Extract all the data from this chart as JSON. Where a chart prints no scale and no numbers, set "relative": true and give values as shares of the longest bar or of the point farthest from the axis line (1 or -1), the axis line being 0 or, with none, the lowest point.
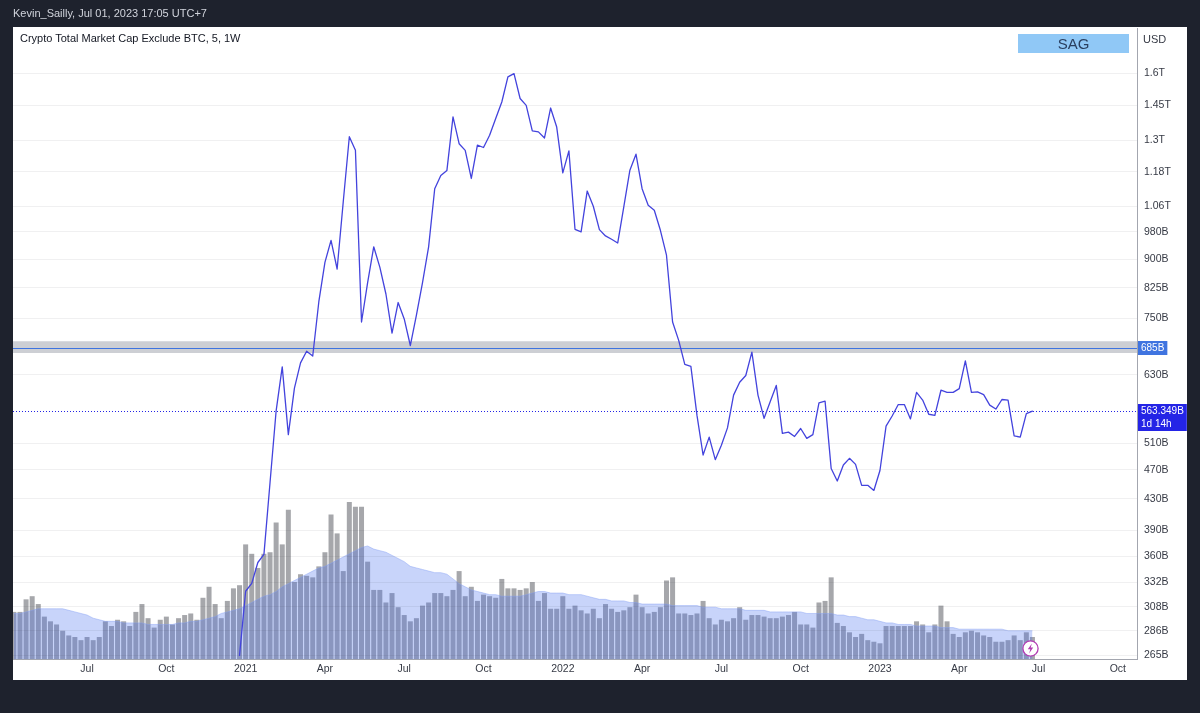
{
  "chart_data": [
    {
      "type": "line",
      "title": "Crypto Total Market Cap Exclude BTC, 5, 1W",
      "subtitle": "Kevin_Sailly, Jul 01, 2023 17:05 UTC+7",
      "ylabel": "USD",
      "x": [
        "2020-12-28",
        "2021-01-04",
        "2021-01-11",
        "2021-01-18",
        "2021-01-25",
        "2021-02-01",
        "2021-02-08",
        "2021-02-15",
        "2021-02-22",
        "2021-03-01",
        "2021-03-08",
        "2021-03-15",
        "2021-03-22",
        "2021-03-29",
        "2021-04-05",
        "2021-04-12",
        "2021-04-19",
        "2021-04-26",
        "2021-05-03",
        "2021-05-10",
        "2021-05-17",
        "2021-05-24",
        "2021-05-31",
        "2021-06-07",
        "2021-06-14",
        "2021-06-21",
        "2021-06-28",
        "2021-07-05",
        "2021-07-12",
        "2021-07-19",
        "2021-07-26",
        "2021-08-02",
        "2021-08-09",
        "2021-08-16",
        "2021-08-23",
        "2021-08-30",
        "2021-09-06",
        "2021-09-13",
        "2021-09-20",
        "2021-09-27",
        "2021-10-04",
        "2021-10-11",
        "2021-10-18",
        "2021-10-25",
        "2021-11-01",
        "2021-11-08",
        "2021-11-15",
        "2021-11-22",
        "2021-11-29",
        "2021-12-06",
        "2021-12-13",
        "2021-12-20",
        "2021-12-27",
        "2022-01-03",
        "2022-01-10",
        "2022-01-17",
        "2022-01-24",
        "2022-01-31",
        "2022-02-07",
        "2022-02-14",
        "2022-02-21",
        "2022-02-28",
        "2022-03-07",
        "2022-03-14",
        "2022-03-21",
        "2022-03-28",
        "2022-04-04",
        "2022-04-11",
        "2022-04-18",
        "2022-04-25",
        "2022-05-02",
        "2022-05-09",
        "2022-05-16",
        "2022-05-23",
        "2022-05-30",
        "2022-06-06",
        "2022-06-13",
        "2022-06-20",
        "2022-06-27",
        "2022-07-04",
        "2022-07-11",
        "2022-07-18",
        "2022-07-25",
        "2022-08-01",
        "2022-08-08",
        "2022-08-15",
        "2022-08-22",
        "2022-08-29",
        "2022-09-05",
        "2022-09-12",
        "2022-09-19",
        "2022-09-26",
        "2022-10-03",
        "2022-10-10",
        "2022-10-17",
        "2022-10-24",
        "2022-10-31",
        "2022-11-07",
        "2022-11-14",
        "2022-11-21",
        "2022-11-28",
        "2022-12-05",
        "2022-12-12",
        "2022-12-19",
        "2022-12-26",
        "2023-01-02",
        "2023-01-09",
        "2023-01-16",
        "2023-01-23",
        "2023-01-30",
        "2023-02-06",
        "2023-02-13",
        "2023-02-20",
        "2023-02-27",
        "2023-03-06",
        "2023-03-13",
        "2023-03-20",
        "2023-03-27",
        "2023-04-03",
        "2023-04-10",
        "2023-04-17",
        "2023-04-24",
        "2023-05-01",
        "2023-05-08",
        "2023-05-15",
        "2023-05-22",
        "2023-05-29",
        "2023-06-05",
        "2023-06-12",
        "2023-06-19",
        "2023-06-26"
      ],
      "values": [
        265000000000,
        323000000000,
        331000000000,
        353000000000,
        362000000000,
        452000000000,
        564000000000,
        646000000000,
        524000000000,
        605000000000,
        654000000000,
        678000000000,
        668000000000,
        790000000000,
        892000000000,
        955000000000,
        874000000000,
        1075000000000,
        1315000000000,
        1261000000000,
        742000000000,
        838000000000,
        936000000000,
        879000000000,
        809000000000,
        717000000000,
        788000000000,
        749000000000,
        690000000000,
        758000000000,
        838000000000,
        936000000000,
        1120000000000,
        1167000000000,
        1185000000000,
        1398000000000,
        1287000000000,
        1261000000000,
        1156000000000,
        1281000000000,
        1272000000000,
        1321000000000,
        1391000000000,
        1464000000000,
        1582000000000,
        1598000000000,
        1480000000000,
        1449000000000,
        1339000000000,
        1335000000000,
        1310000000000,
        1437000000000,
        1355000000000,
        1176000000000,
        1259000000000,
        988000000000,
        980000000000,
        1112000000000,
        1061000000000,
        987000000000,
        968000000000,
        958000000000,
        947000000000,
        1059000000000,
        1186000000000,
        1246000000000,
        1120000000000,
        1064000000000,
        1048000000000,
        985000000000,
        912000000000,
        742000000000,
        701000000000,
        651000000000,
        647000000000,
        556000000000,
        492000000000,
        520000000000,
        485000000000,
        507000000000,
        535000000000,
        592000000000,
        616000000000,
        629000000000,
        676000000000,
        592000000000,
        551000000000,
        580000000000,
        610000000000,
        526000000000,
        528000000000,
        521000000000,
        534000000000,
        518000000000,
        524000000000,
        578000000000,
        581000000000,
        472000000000,
        454000000000,
        477000000000,
        487000000000,
        478000000000,
        448000000000,
        448000000000,
        441000000000,
        469000000000,
        538000000000,
        555000000000,
        575000000000,
        575000000000,
        550000000000,
        597000000000,
        583000000000,
        558000000000,
        556000000000,
        601000000000,
        597000000000,
        597000000000,
        604000000000,
        658000000000,
        597000000000,
        598000000000,
        593000000000,
        574000000000,
        567000000000,
        584000000000,
        583000000000,
        522000000000,
        520000000000,
        559000000000,
        563349000000
      ],
      "color": "#4343dd",
      "xlim": [
        "2020-04-12",
        "2023-10-24"
      ],
      "xticks": [
        {
          "value": "2020-07-06",
          "label": "Jul"
        },
        {
          "value": "2020-10-05",
          "label": "Oct"
        },
        {
          "value": "2021-01-04",
          "label": "2021"
        },
        {
          "value": "2021-04-05",
          "label": "Apr"
        },
        {
          "value": "2021-07-05",
          "label": "Jul"
        },
        {
          "value": "2021-10-04",
          "label": "Oct"
        },
        {
          "value": "2022-01-03",
          "label": "2022"
        },
        {
          "value": "2022-04-04",
          "label": "Apr"
        },
        {
          "value": "2022-07-04",
          "label": "Jul"
        },
        {
          "value": "2022-10-03",
          "label": "Oct"
        },
        {
          "value": "2023-01-02",
          "label": "2023"
        },
        {
          "value": "2023-04-03",
          "label": "Apr"
        },
        {
          "value": "2023-07-03",
          "label": "Jul"
        },
        {
          "value": "2023-10-02",
          "label": "Oct"
        }
      ],
      "ylim": [
        262000000000,
        1840000000000
      ],
      "yticks": [
        {
          "value": 1600000000000,
          "label": "1.6T"
        },
        {
          "value": 1450000000000,
          "label": "1.45T"
        },
        {
          "value": 1300000000000,
          "label": "1.3T"
        },
        {
          "value": 1180000000000,
          "label": "1.18T"
        },
        {
          "value": 1060000000000,
          "label": "1.06T"
        },
        {
          "value": 980000000000,
          "label": "980B"
        },
        {
          "value": 900000000000,
          "label": "900B"
        },
        {
          "value": 825000000000,
          "label": "825B"
        },
        {
          "value": 750000000000,
          "label": "750B"
        },
        {
          "value": 630000000000,
          "label": "630B"
        },
        {
          "value": 510000000000,
          "label": "510B"
        },
        {
          "value": 470000000000,
          "label": "470B"
        },
        {
          "value": 430000000000,
          "label": "430B"
        },
        {
          "value": 390000000000,
          "label": "390B"
        },
        {
          "value": 360000000000,
          "label": "360B"
        },
        {
          "value": 332000000000,
          "label": "332B"
        },
        {
          "value": 308000000000,
          "label": "308B"
        },
        {
          "value": 286000000000,
          "label": "286B"
        },
        {
          "value": 265000000000,
          "label": "265B"
        }
      ],
      "log": true,
      "grid": "y",
      "ref_lines": [
        {
          "axis": "y",
          "value": 685000000000,
          "label": "685B",
          "color": "#3f74e0"
        },
        {
          "axis": "y",
          "value": 563349000000,
          "label": "563.349B",
          "color": "#2424e6",
          "line_style": "dotted"
        }
      ],
      "bands": [
        {
          "axis": "y",
          "from": 674000000000,
          "to": 699000000000,
          "color": "#cdcfd4"
        }
      ],
      "annotations": [
        "SAG",
        "1d 14h"
      ]
    },
    {
      "type": "bar",
      "relative": true,
      "tick_labels": false,
      "x": [
        "2020-04-13",
        "2020-04-20",
        "2020-04-27",
        "2020-05-04",
        "2020-05-11",
        "2020-05-18",
        "2020-05-25",
        "2020-06-01",
        "2020-06-08",
        "2020-06-15",
        "2020-06-22",
        "2020-06-29",
        "2020-07-06",
        "2020-07-13",
        "2020-07-20",
        "2020-07-27",
        "2020-08-03",
        "2020-08-10",
        "2020-08-17",
        "2020-08-24",
        "2020-08-31",
        "2020-09-07",
        "2020-09-14",
        "2020-09-21",
        "2020-09-28",
        "2020-10-05",
        "2020-10-12",
        "2020-10-19",
        "2020-10-26",
        "2020-11-02",
        "2020-11-09",
        "2020-11-16",
        "2020-11-23",
        "2020-11-30",
        "2020-12-07",
        "2020-12-14",
        "2020-12-21",
        "2020-12-28",
        "2021-01-04",
        "2021-01-11",
        "2021-01-18",
        "2021-01-25",
        "2021-02-01",
        "2021-02-08",
        "2021-02-15",
        "2021-02-22",
        "2021-03-01",
        "2021-03-08",
        "2021-03-15",
        "2021-03-22",
        "2021-03-29",
        "2021-04-05",
        "2021-04-12",
        "2021-04-19",
        "2021-04-26",
        "2021-05-03",
        "2021-05-10",
        "2021-05-17",
        "2021-05-24",
        "2021-05-31",
        "2021-06-07",
        "2021-06-14",
        "2021-06-21",
        "2021-06-28",
        "2021-07-05",
        "2021-07-12",
        "2021-07-19",
        "2021-07-26",
        "2021-08-02",
        "2021-08-09",
        "2021-08-16",
        "2021-08-23",
        "2021-08-30",
        "2021-09-06",
        "2021-09-13",
        "2021-09-20",
        "2021-09-27",
        "2021-10-04",
        "2021-10-11",
        "2021-10-18",
        "2021-10-25",
        "2021-11-01",
        "2021-11-08",
        "2021-11-15",
        "2021-11-22",
        "2021-11-29",
        "2021-12-06",
        "2021-12-13",
        "2021-12-20",
        "2021-12-27",
        "2022-01-03",
        "2022-01-10",
        "2022-01-17",
        "2022-01-24",
        "2022-01-31",
        "2022-02-07",
        "2022-02-14",
        "2022-02-21",
        "2022-02-28",
        "2022-03-07",
        "2022-03-14",
        "2022-03-21",
        "2022-03-28",
        "2022-04-04",
        "2022-04-11",
        "2022-04-18",
        "2022-04-25",
        "2022-05-02",
        "2022-05-09",
        "2022-05-16",
        "2022-05-23",
        "2022-05-30",
        "2022-06-06",
        "2022-06-13",
        "2022-06-20",
        "2022-06-27",
        "2022-07-04",
        "2022-07-11",
        "2022-07-18",
        "2022-07-25",
        "2022-08-01",
        "2022-08-08",
        "2022-08-15",
        "2022-08-22",
        "2022-08-29",
        "2022-09-05",
        "2022-09-12",
        "2022-09-19",
        "2022-09-26",
        "2022-10-03",
        "2022-10-10",
        "2022-10-17",
        "2022-10-24",
        "2022-10-31",
        "2022-11-07",
        "2022-11-14",
        "2022-11-21",
        "2022-11-28",
        "2022-12-05",
        "2022-12-12",
        "2022-12-19",
        "2022-12-26",
        "2023-01-02",
        "2023-01-09",
        "2023-01-16",
        "2023-01-23",
        "2023-01-30",
        "2023-02-06",
        "2023-02-13",
        "2023-02-20",
        "2023-02-27",
        "2023-03-06",
        "2023-03-13",
        "2023-03-20",
        "2023-03-27",
        "2023-04-03",
        "2023-04-10",
        "2023-04-17",
        "2023-04-24",
        "2023-05-01",
        "2023-05-08",
        "2023-05-15",
        "2023-05-22",
        "2023-05-29",
        "2023-06-05",
        "2023-06-12",
        "2023-06-19",
        "2023-06-26"
      ],
      "xlim": [
        "2020-04-12",
        "2023-10-24"
      ],
      "series": [
        {
          "color": "#a6a7ab",
          "values": [
            0.3,
            0.3,
            0.38,
            0.4,
            0.35,
            0.27,
            0.24,
            0.22,
            0.18,
            0.15,
            0.14,
            0.12,
            0.14,
            0.12,
            0.14,
            0.24,
            0.21,
            0.25,
            0.24,
            0.21,
            0.3,
            0.35,
            0.26,
            0.2,
            0.25,
            0.27,
            0.22,
            0.26,
            0.28,
            0.29,
            0.25,
            0.39,
            0.46,
            0.35,
            0.26,
            0.37,
            0.45,
            0.47,
            0.73,
            0.67,
            0.58,
            0.67,
            0.68,
            0.87,
            0.73,
            0.95,
            0.49,
            0.54,
            0.53,
            0.52,
            0.59,
            0.68,
            0.92,
            0.8,
            0.56,
            1,
            0.97,
            0.97,
            0.62,
            0.44,
            0.44,
            0.36,
            0.42,
            0.33,
            0.28,
            0.24,
            0.26,
            0.34,
            0.36,
            0.42,
            0.42,
            0.4,
            0.44,
            0.56,
            0.4,
            0.46,
            0.37,
            0.41,
            0.4,
            0.39,
            0.51,
            0.45,
            0.45,
            0.44,
            0.45,
            0.49,
            0.37,
            0.42,
            0.32,
            0.32,
            0.4,
            0.32,
            0.34,
            0.31,
            0.29,
            0.32,
            0.26,
            0.35,
            0.32,
            0.3,
            0.31,
            0.33,
            0.41,
            0.33,
            0.29,
            0.3,
            0.33,
            0.5,
            0.52,
            0.29,
            0.29,
            0.28,
            0.29,
            0.37,
            0.26,
            0.22,
            0.25,
            0.24,
            0.26,
            0.33,
            0.25,
            0.28,
            0.28,
            0.27,
            0.26,
            0.26,
            0.27,
            0.28,
            0.3,
            0.22,
            0.22,
            0.2,
            0.36,
            0.37,
            0.52,
            0.23,
            0.21,
            0.17,
            0.14,
            0.16,
            0.12,
            0.11,
            0.1,
            0.21,
            0.21,
            0.21,
            0.21,
            0.21,
            0.24,
            0.22,
            0.17,
            0.22,
            0.34,
            0.24,
            0.16,
            0.14,
            0.17,
            0.18,
            0.17,
            0.15,
            0.14,
            0.11,
            0.11,
            0.12,
            0.15,
            0.12,
            0.17,
            0.14
          ]
        },
        {
          "type": "area",
          "color": "#c8d4fa",
          "values": [
            0.29,
            0.29,
            0.3,
            0.31,
            0.32,
            0.32,
            0.32,
            0.32,
            0.32,
            0.31,
            0.3,
            0.29,
            0.28,
            0.26,
            0.25,
            0.24,
            0.24,
            0.24,
            0.23,
            0.23,
            0.23,
            0.23,
            0.22,
            0.22,
            0.22,
            0.22,
            0.22,
            0.23,
            0.23,
            0.24,
            0.24,
            0.25,
            0.26,
            0.27,
            0.29,
            0.3,
            0.31,
            0.32,
            0.34,
            0.36,
            0.38,
            0.4,
            0.41,
            0.43,
            0.46,
            0.48,
            0.5,
            0.52,
            0.54,
            0.56,
            0.58,
            0.59,
            0.61,
            0.63,
            0.65,
            0.67,
            0.69,
            0.71,
            0.72,
            0.7,
            0.69,
            0.68,
            0.66,
            0.64,
            0.62,
            0.59,
            0.58,
            0.57,
            0.56,
            0.55,
            0.55,
            0.54,
            0.51,
            0.48,
            0.46,
            0.44,
            0.43,
            0.42,
            0.41,
            0.41,
            0.4,
            0.4,
            0.4,
            0.4,
            0.41,
            0.42,
            0.43,
            0.43,
            0.42,
            0.42,
            0.42,
            0.41,
            0.41,
            0.41,
            0.4,
            0.39,
            0.38,
            0.38,
            0.37,
            0.37,
            0.37,
            0.36,
            0.36,
            0.35,
            0.35,
            0.35,
            0.35,
            0.35,
            0.34,
            0.34,
            0.34,
            0.34,
            0.34,
            0.33,
            0.33,
            0.33,
            0.32,
            0.32,
            0.32,
            0.32,
            0.31,
            0.31,
            0.31,
            0.31,
            0.3,
            0.3,
            0.3,
            0.3,
            0.3,
            0.3,
            0.29,
            0.29,
            0.29,
            0.29,
            0.29,
            0.28,
            0.28,
            0.27,
            0.27,
            0.26,
            0.25,
            0.25,
            0.24,
            0.23,
            0.23,
            0.22,
            0.22,
            0.22,
            0.21,
            0.21,
            0.21,
            0.21,
            0.2,
            0.2,
            0.2,
            0.19,
            0.19,
            0.19,
            0.19,
            0.19,
            0.19,
            0.19,
            0.19,
            0.18,
            0.18,
            0.18,
            0.18,
            0.18
          ]
        }
      ]
    }
  ]
}
